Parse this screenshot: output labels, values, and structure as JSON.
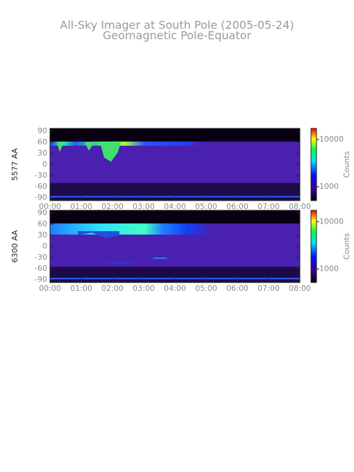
{
  "title": "All-Sky Imager at South Pole (2005-05-24)",
  "subtitle": "Geomagnetic Pole-Equator",
  "chart_data": [
    {
      "type": "heatmap",
      "ylabel": "5577 AA",
      "xlim": [
        0,
        8
      ],
      "xticks": [
        {
          "value": 0,
          "label": "00:00"
        },
        {
          "value": 1,
          "label": "01:00"
        },
        {
          "value": 2,
          "label": "02:00"
        },
        {
          "value": 3,
          "label": "03:00"
        },
        {
          "value": 4,
          "label": "04:00"
        },
        {
          "value": 5,
          "label": "05:00"
        },
        {
          "value": 6,
          "label": "06:00"
        },
        {
          "value": 7,
          "label": "07:00"
        },
        {
          "value": 8,
          "label": "08:00"
        }
      ],
      "ylim": [
        -97.5,
        97.5
      ],
      "yticks": [
        90,
        60,
        30,
        0,
        -30,
        -60,
        -90
      ],
      "colorbar": {
        "label": "Counts",
        "log": true,
        "lim": [
          510,
          17200
        ],
        "ticks": [
          10000,
          1000
        ]
      }
    },
    {
      "type": "heatmap",
      "ylabel": "6300 AA",
      "xlim": [
        0,
        8
      ],
      "xticks": [
        {
          "value": 0,
          "label": "00:00"
        },
        {
          "value": 1,
          "label": "01:00"
        },
        {
          "value": 2,
          "label": "02:00"
        },
        {
          "value": 3,
          "label": "03:00"
        },
        {
          "value": 4,
          "label": "04:00"
        },
        {
          "value": 5,
          "label": "05:00"
        },
        {
          "value": 6,
          "label": "06:00"
        },
        {
          "value": 7,
          "label": "07:00"
        },
        {
          "value": 8,
          "label": "08:00"
        }
      ],
      "ylim": [
        -97.5,
        97.5
      ],
      "yticks": [
        90,
        60,
        30,
        0,
        -30,
        -60,
        -90
      ],
      "colorbar": {
        "label": "Counts",
        "log": true,
        "lim": [
          520,
          17500
        ],
        "ticks": [
          10000,
          1000
        ]
      }
    }
  ]
}
